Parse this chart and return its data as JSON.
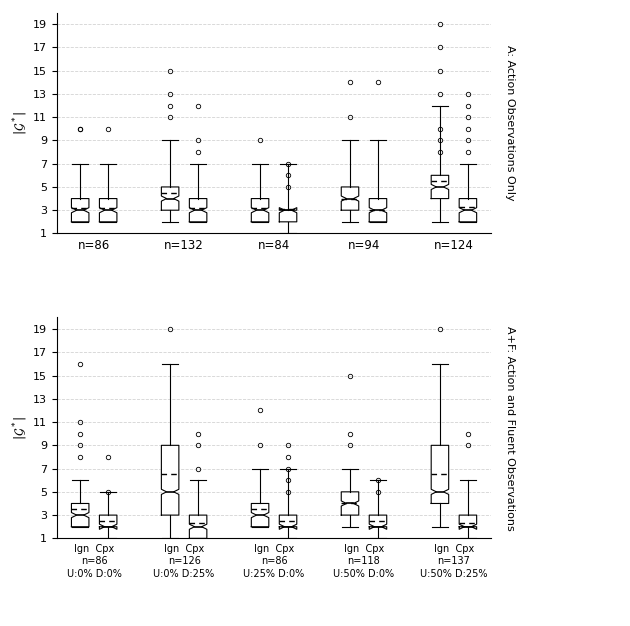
{
  "top_title": "A: Action Observations Only",
  "bottom_title": "A+F: Action and Fluent Observations",
  "ylabel": "$|\\mathcal{G}^*|$",
  "top_groups": [
    {
      "xlabel": "n=86",
      "ign": {
        "whislo": 2,
        "q1": 2,
        "med": 3,
        "mean": 3.2,
        "q3": 4,
        "whishi": 7,
        "fliers": [
          10,
          10
        ]
      },
      "cpx": {
        "whislo": 2,
        "q1": 2,
        "med": 3,
        "mean": 3.2,
        "q3": 4,
        "whishi": 7,
        "fliers": [
          10
        ]
      }
    },
    {
      "xlabel": "n=132",
      "ign": {
        "whislo": 2,
        "q1": 3,
        "med": 4,
        "mean": 4.5,
        "q3": 5,
        "whishi": 9,
        "fliers": [
          11,
          12,
          13,
          15
        ]
      },
      "cpx": {
        "whislo": 2,
        "q1": 2,
        "med": 3,
        "mean": 3.2,
        "q3": 4,
        "whishi": 7,
        "fliers": [
          8,
          9,
          12
        ]
      }
    },
    {
      "xlabel": "n=84",
      "ign": {
        "whislo": 2,
        "q1": 2,
        "med": 3,
        "mean": 3.2,
        "q3": 4,
        "whishi": 7,
        "fliers": [
          9
        ]
      },
      "cpx": {
        "whislo": 1,
        "q1": 2,
        "med": 3,
        "mean": 3.1,
        "q3": 3,
        "whishi": 7,
        "fliers": [
          5,
          6,
          7
        ]
      }
    },
    {
      "xlabel": "n=94",
      "ign": {
        "whislo": 2,
        "q1": 3,
        "med": 4,
        "mean": 4.0,
        "q3": 5,
        "whishi": 9,
        "fliers": [
          11,
          14
        ]
      },
      "cpx": {
        "whislo": 2,
        "q1": 2,
        "med": 3,
        "mean": 3.0,
        "q3": 4,
        "whishi": 9,
        "fliers": [
          14
        ]
      }
    },
    {
      "xlabel": "n=124",
      "ign": {
        "whislo": 2,
        "q1": 4,
        "med": 5,
        "mean": 5.5,
        "q3": 6,
        "whishi": 12,
        "fliers": [
          8,
          9,
          10,
          13,
          15,
          17,
          19
        ]
      },
      "cpx": {
        "whislo": 2,
        "q1": 2,
        "med": 3,
        "mean": 3.3,
        "q3": 4,
        "whishi": 7,
        "fliers": [
          8,
          9,
          10,
          11,
          12,
          13
        ]
      }
    }
  ],
  "bottom_groups": [
    {
      "xlabel_l1": "Ign  Cpx",
      "xlabel_l2": "n=86",
      "xlabel_l3": "U:0% D:0%",
      "ign": {
        "whislo": 2,
        "q1": 2,
        "med": 3,
        "mean": 3.5,
        "q3": 4,
        "whishi": 6,
        "fliers": [
          8,
          9,
          10,
          11,
          16
        ]
      },
      "cpx": {
        "whislo": 1,
        "q1": 2,
        "med": 2,
        "mean": 2.5,
        "q3": 3,
        "whishi": 5,
        "fliers": [
          5,
          8
        ]
      }
    },
    {
      "xlabel_l1": "Ign  Cpx",
      "xlabel_l2": "n=126",
      "xlabel_l3": "U:0% D:25%",
      "ign": {
        "whislo": 1,
        "q1": 3,
        "med": 5,
        "mean": 6.5,
        "q3": 9,
        "whishi": 16,
        "fliers": [
          19
        ]
      },
      "cpx": {
        "whislo": 1,
        "q1": 1,
        "med": 2,
        "mean": 2.3,
        "q3": 3,
        "whishi": 6,
        "fliers": [
          7,
          9,
          10
        ]
      }
    },
    {
      "xlabel_l1": "Ign  Cpx",
      "xlabel_l2": "n=86",
      "xlabel_l3": "U:25% D:0%",
      "ign": {
        "whislo": 2,
        "q1": 2,
        "med": 3,
        "mean": 3.5,
        "q3": 4,
        "whishi": 7,
        "fliers": [
          9,
          12
        ]
      },
      "cpx": {
        "whislo": 1,
        "q1": 2,
        "med": 2,
        "mean": 2.5,
        "q3": 3,
        "whishi": 7,
        "fliers": [
          5,
          6,
          7,
          8,
          9
        ]
      }
    },
    {
      "xlabel_l1": "Ign  Cpx",
      "xlabel_l2": "n=118",
      "xlabel_l3": "U:50% D:0%",
      "ign": {
        "whislo": 2,
        "q1": 3,
        "med": 4,
        "mean": 4.0,
        "q3": 5,
        "whishi": 7,
        "fliers": [
          9,
          10,
          15
        ]
      },
      "cpx": {
        "whislo": 1,
        "q1": 2,
        "med": 2,
        "mean": 2.5,
        "q3": 3,
        "whishi": 6,
        "fliers": [
          5,
          6
        ]
      }
    },
    {
      "xlabel_l1": "Ign  Cpx",
      "xlabel_l2": "n=137",
      "xlabel_l3": "U:50% D:25%",
      "ign": {
        "whislo": 2,
        "q1": 4,
        "med": 5,
        "mean": 6.5,
        "q3": 9,
        "whishi": 16,
        "fliers": [
          19
        ]
      },
      "cpx": {
        "whislo": 1,
        "q1": 2,
        "med": 2,
        "mean": 2.3,
        "q3": 3,
        "whishi": 6,
        "fliers": [
          9,
          10
        ]
      }
    }
  ]
}
